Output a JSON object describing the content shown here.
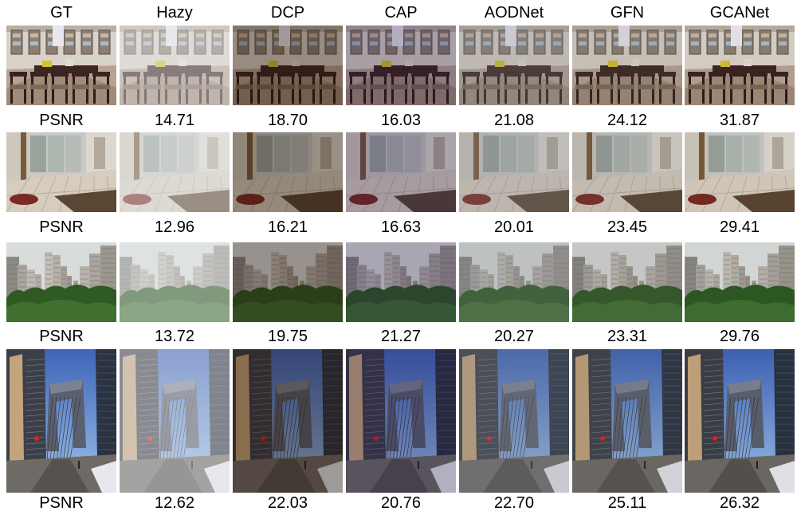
{
  "columns": [
    "GT",
    "Hazy",
    "DCP",
    "CAP",
    "AODNet",
    "GFN",
    "GCANet"
  ],
  "rows": [
    {
      "scene": "dining-room",
      "row_label": "PSNR",
      "psnr": [
        "14.71",
        "18.70",
        "16.03",
        "21.08",
        "24.12",
        "31.87"
      ]
    },
    {
      "scene": "sunroom",
      "row_label": "PSNR",
      "psnr": [
        "12.96",
        "16.21",
        "16.63",
        "20.01",
        "23.45",
        "29.41"
      ]
    },
    {
      "scene": "apartment-towers",
      "row_label": "PSNR",
      "psnr": [
        "13.72",
        "19.75",
        "21.27",
        "20.27",
        "23.31",
        "29.76"
      ]
    },
    {
      "scene": "cctv-tower-street",
      "row_label": "PSNR",
      "psnr": [
        "12.62",
        "22.03",
        "20.76",
        "22.70",
        "25.11",
        "26.32"
      ]
    }
  ],
  "styles": {
    "GT": {
      "tint": "#000000",
      "tintOp": 0,
      "haze": "#ffffff",
      "hazeOp": 0,
      "dark": 0
    },
    "Hazy": {
      "tint": "#000000",
      "tintOp": 0,
      "haze": "#e6e8ea",
      "hazeOp": 0.45,
      "dark": 0
    },
    "DCP": {
      "tint": "#3a1a0a",
      "tintOp": 0.22,
      "haze": "#ffffff",
      "hazeOp": 0,
      "dark": 0.18
    },
    "CAP": {
      "tint": "#4b2aa0",
      "tintOp": 0.12,
      "haze": "#ffffff",
      "hazeOp": 0,
      "dark": 0.16
    },
    "AODNet": {
      "tint": "#2a2050",
      "tintOp": 0.08,
      "haze": "#d8dadc",
      "hazeOp": 0.14,
      "dark": 0.08
    },
    "GFN": {
      "tint": "#000000",
      "tintOp": 0,
      "haze": "#ffffff",
      "hazeOp": 0.05,
      "dark": 0.1
    },
    "GCANet": {
      "tint": "#000000",
      "tintOp": 0,
      "haze": "#ffffff",
      "hazeOp": 0,
      "dark": 0.03
    }
  }
}
